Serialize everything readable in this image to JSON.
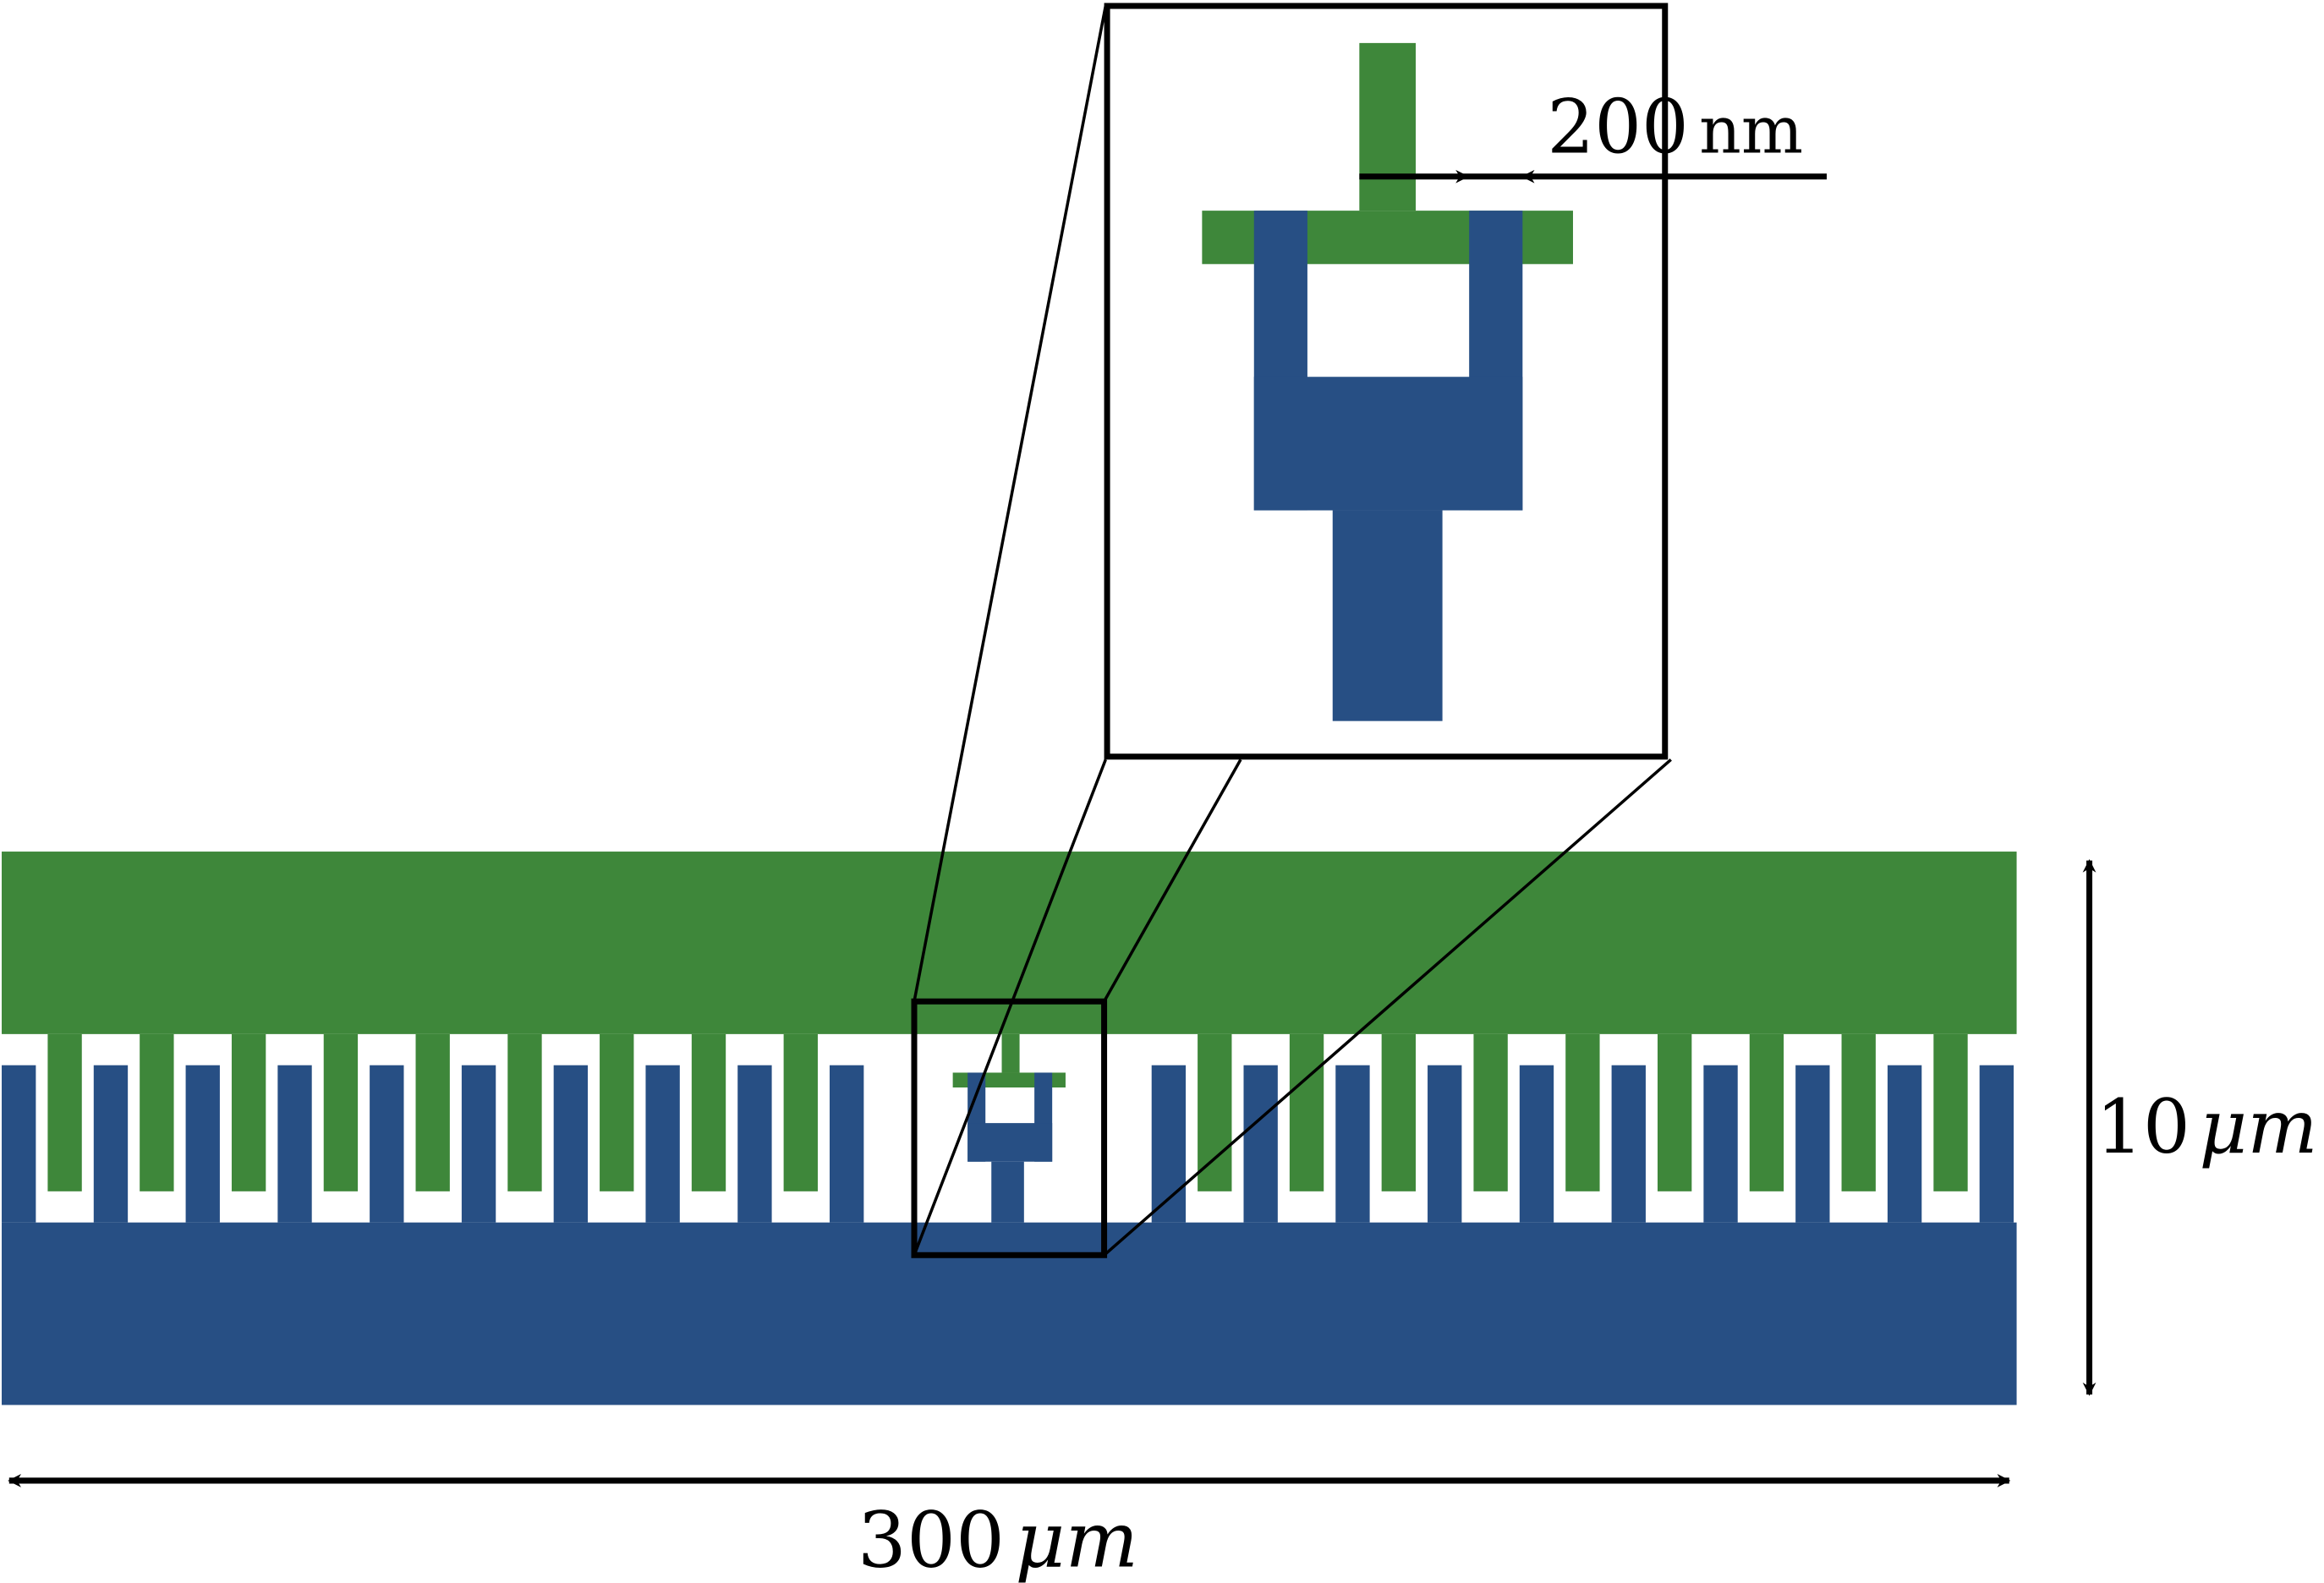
{
  "colors": {
    "top_electrode": "#3e873a",
    "bottom_electrode": "#274f84",
    "outline": "#000000",
    "background": "#ffffff"
  },
  "labels": {
    "inset_scale_number": "200",
    "inset_scale_unit": "nm",
    "height_number": "10",
    "height_unit": "μm",
    "width_number": "300",
    "width_unit": "μm"
  }
}
